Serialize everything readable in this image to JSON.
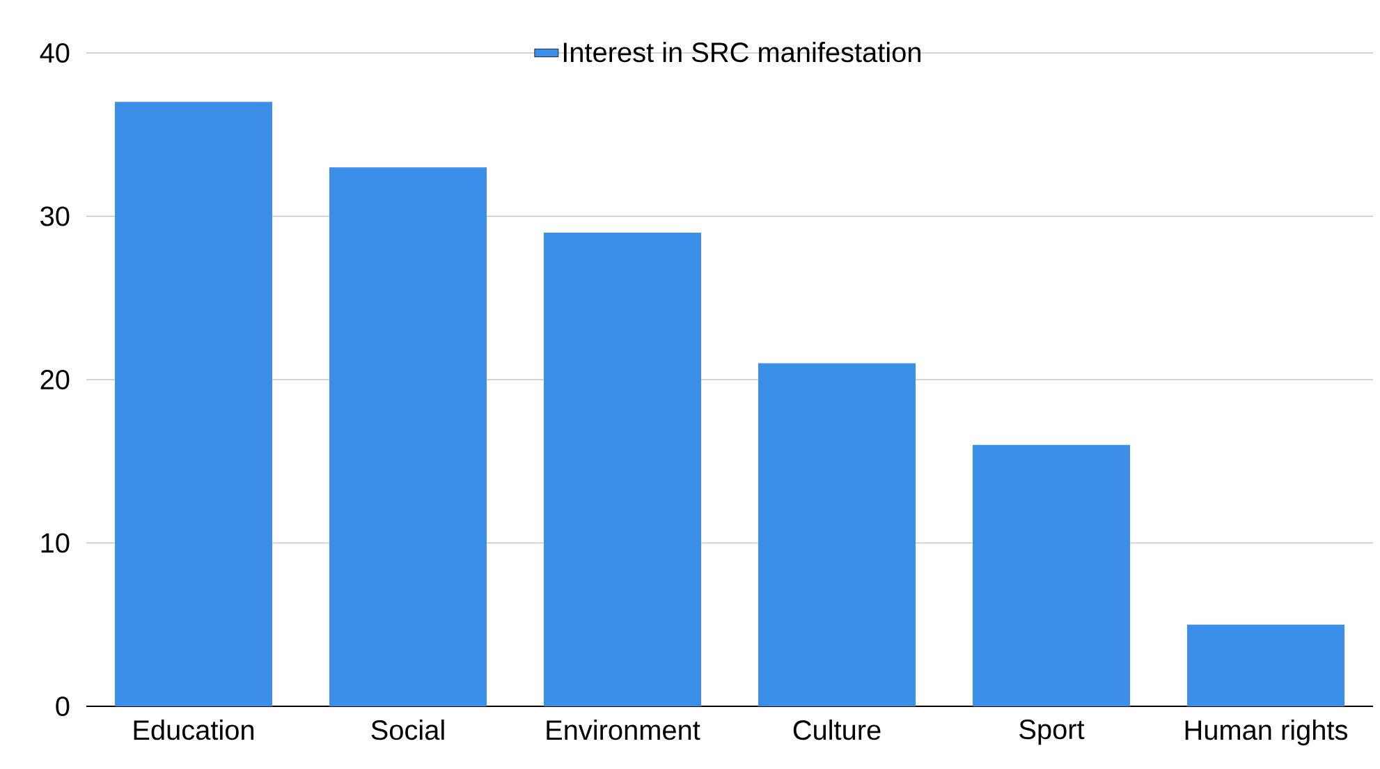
{
  "chart_data": {
    "type": "bar",
    "categories": [
      "Education",
      "Social",
      "Environment",
      "Culture",
      "Sport",
      "Human rights"
    ],
    "series": [
      {
        "name": "Interest in SRC manifestation",
        "color": "#3b8fe8",
        "values": [
          37,
          33,
          29,
          21,
          16,
          5
        ]
      }
    ],
    "ylim": [
      0,
      40
    ],
    "yticks": [
      0,
      10,
      20,
      30,
      40
    ],
    "grid": "y",
    "legend": "top"
  }
}
